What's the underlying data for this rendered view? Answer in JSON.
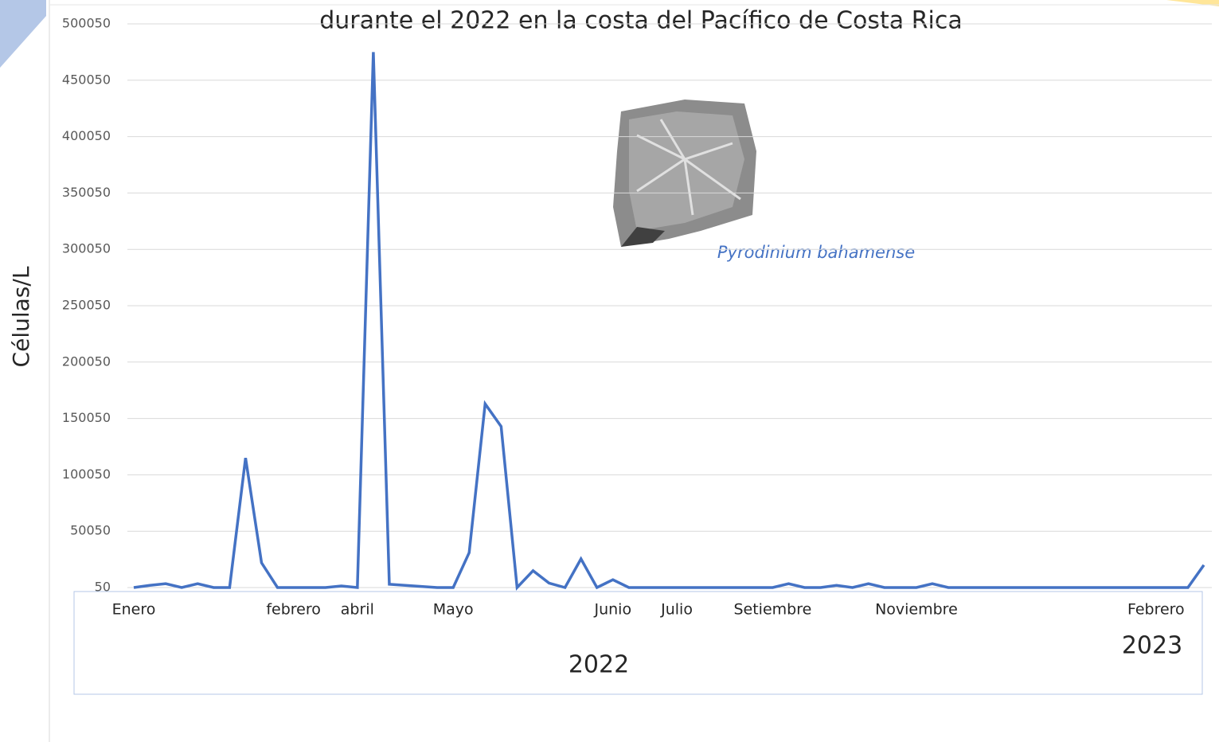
{
  "chart_data": {
    "type": "line",
    "title": "durante el 2022 en la costa del Pacífico de Costa Rica",
    "y_label": "Células/L",
    "annotation": "Pyrodinium bahamense",
    "year_labels": [
      "2022",
      "2023"
    ],
    "categories": [
      "Enero",
      null,
      null,
      null,
      null,
      null,
      null,
      null,
      null,
      null,
      "febrero",
      null,
      null,
      null,
      "abril",
      null,
      null,
      null,
      null,
      null,
      "Mayo",
      null,
      null,
      null,
      null,
      null,
      null,
      null,
      null,
      null,
      "Junio",
      null,
      null,
      null,
      "Julio",
      null,
      null,
      null,
      null,
      null,
      "Setiembre",
      null,
      null,
      null,
      null,
      null,
      null,
      null,
      null,
      "Noviembre",
      null,
      null,
      null,
      null,
      null,
      null,
      null,
      null,
      null,
      null,
      null,
      null,
      null,
      null,
      "Febrero",
      null,
      null,
      null
    ],
    "series": [
      {
        "name": "Pyrodinium bahamense",
        "color": "#4472c4",
        "values": [
          50,
          2000,
          3500,
          50,
          3500,
          50,
          50,
          115000,
          22000,
          50,
          50,
          50,
          50,
          1500,
          50,
          475000,
          3000,
          2000,
          1000,
          50,
          50,
          31000,
          163000,
          143000,
          50,
          15000,
          4000,
          50,
          25500,
          50,
          7000,
          50,
          50,
          50,
          50,
          50,
          50,
          50,
          50,
          50,
          50,
          3500,
          50,
          50,
          2000,
          50,
          3500,
          50,
          50,
          50,
          3500,
          50,
          50,
          50,
          50,
          50,
          50,
          50,
          50,
          50,
          50,
          50,
          50,
          50,
          50,
          50,
          50,
          20000
        ]
      }
    ],
    "ylim": [
      50,
      500050
    ],
    "yticks": [
      50,
      50050,
      100050,
      150050,
      200050,
      250050,
      300050,
      350050,
      400050,
      450050,
      500050
    ],
    "grid": true
  }
}
